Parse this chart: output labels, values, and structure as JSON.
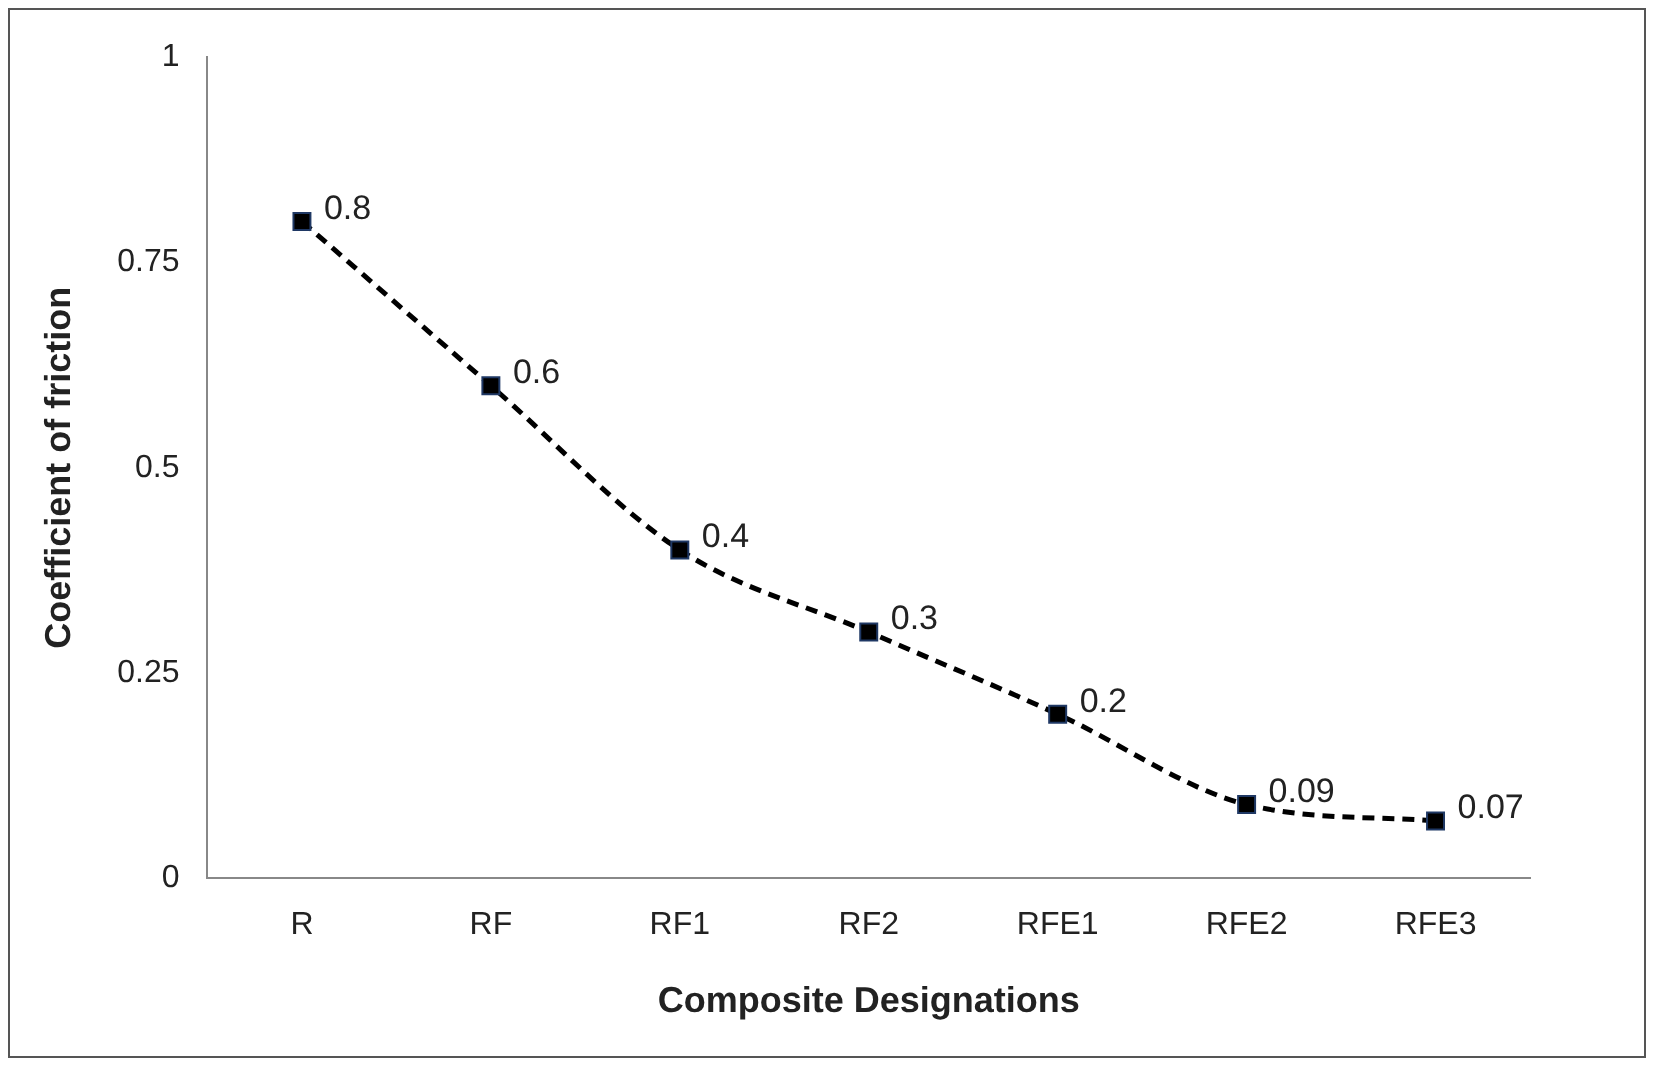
{
  "chart_data": {
    "type": "line",
    "xlabel": "Composite Designations",
    "ylabel": "Coefficient of friction",
    "categories": [
      "R",
      "RF",
      "RF1",
      "RF2",
      "RFE1",
      "RFE2",
      "RFE3"
    ],
    "values": [
      0.8,
      0.6,
      0.4,
      0.3,
      0.2,
      0.09,
      0.07
    ],
    "color": "#000000",
    "marker": "square",
    "line_style": "dashed",
    "data_labels": true,
    "ylim": [
      0,
      1
    ],
    "yticks": [
      0,
      0.25,
      0.5,
      0.75,
      1
    ],
    "grid": false,
    "legend": false
  }
}
